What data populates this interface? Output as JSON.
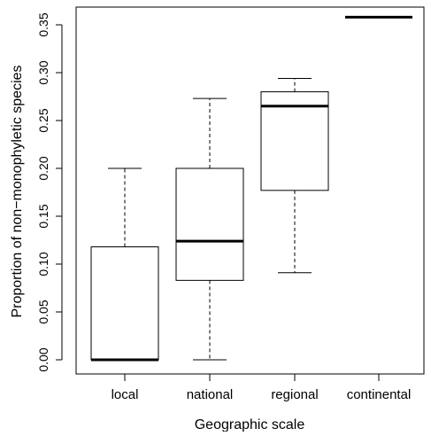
{
  "chart_data": {
    "type": "boxplot",
    "title": "",
    "xlabel": "Geographic scale",
    "ylabel": "Proportion of non−monophyletic species",
    "categories": [
      "local",
      "national",
      "regional",
      "continental"
    ],
    "boxes": [
      {
        "category": "local",
        "min": 0.0,
        "q1": 0.0,
        "median": 0.0,
        "q3": 0.118,
        "max": 0.2
      },
      {
        "category": "national",
        "min": 0.0,
        "q1": 0.083,
        "median": 0.124,
        "q3": 0.2,
        "max": 0.273
      },
      {
        "category": "regional",
        "min": 0.091,
        "q1": 0.177,
        "median": 0.265,
        "q3": 0.28,
        "max": 0.294
      },
      {
        "category": "continental",
        "min": 0.358,
        "q1": 0.358,
        "median": 0.358,
        "q3": 0.358,
        "max": 0.358
      }
    ],
    "yticks": [
      0.0,
      0.05,
      0.1,
      0.15,
      0.2,
      0.25,
      0.3,
      0.35
    ],
    "ytick_labels": [
      "0.00",
      "0.05",
      "0.10",
      "0.15",
      "0.20",
      "0.25",
      "0.30",
      "0.35"
    ],
    "ylim": [
      -0.015,
      0.368
    ],
    "grid": false,
    "legend": "none"
  }
}
